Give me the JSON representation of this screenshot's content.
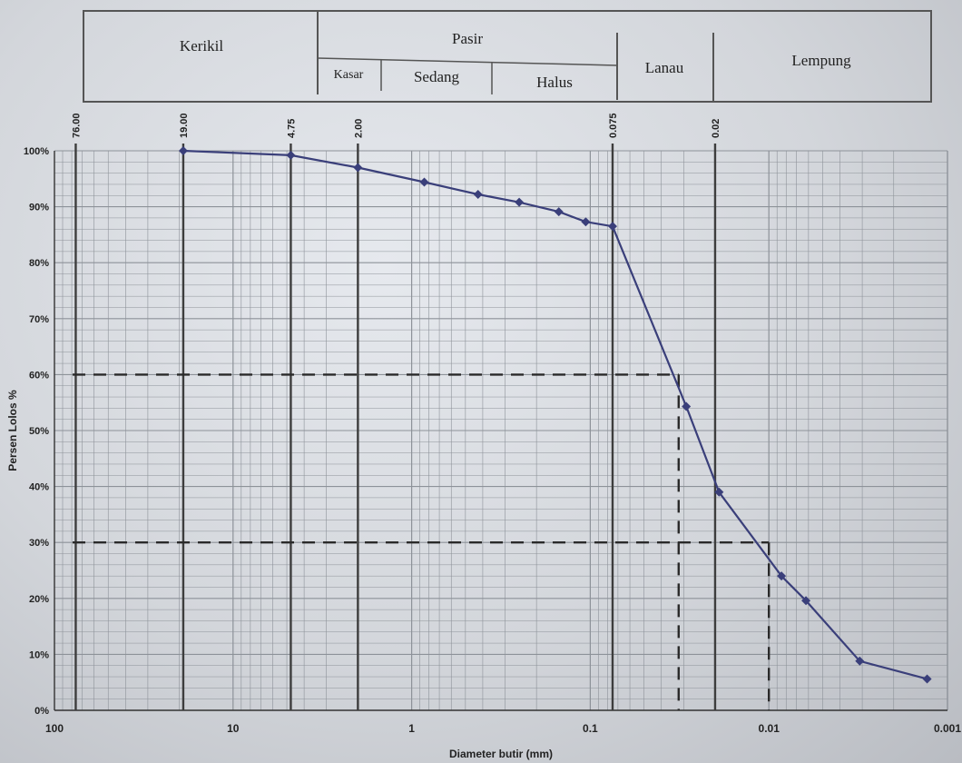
{
  "soil_classes": {
    "kerikil": "Kerikil",
    "pasir": "Pasir",
    "kasar": "Kasar",
    "sedang": "Sedang",
    "halus": "Halus",
    "lanau": "Lanau",
    "lempung": "Lempung"
  },
  "chart_data": {
    "type": "line",
    "x_scale": "log",
    "x_reversed": true,
    "xlabel": "Diameter butir (mm)",
    "ylabel": "Persen Lolos %",
    "xlim": [
      100,
      0.001
    ],
    "ylim": [
      0,
      100
    ],
    "x_ticks": [
      {
        "value": 100,
        "label": "100"
      },
      {
        "value": 10,
        "label": "10"
      },
      {
        "value": 1,
        "label": "1"
      },
      {
        "value": 0.1,
        "label": "0.1"
      },
      {
        "value": 0.01,
        "label": "0.01"
      },
      {
        "value": 0.001,
        "label": "0.001"
      }
    ],
    "y_ticks": [
      {
        "value": 0,
        "label": "0%"
      },
      {
        "value": 10,
        "label": "10%"
      },
      {
        "value": 20,
        "label": "20%"
      },
      {
        "value": 30,
        "label": "30%"
      },
      {
        "value": 40,
        "label": "40%"
      },
      {
        "value": 50,
        "label": "50%"
      },
      {
        "value": 60,
        "label": "60%"
      },
      {
        "value": 70,
        "label": "70%"
      },
      {
        "value": 80,
        "label": "80%"
      },
      {
        "value": 90,
        "label": "90%"
      },
      {
        "value": 100,
        "label": "100%"
      }
    ],
    "sieve_labels": [
      {
        "value": 76.0,
        "label": "76.00"
      },
      {
        "value": 19.0,
        "label": "19.00"
      },
      {
        "value": 4.75,
        "label": "4.75"
      },
      {
        "value": 2.0,
        "label": "2.00"
      },
      {
        "value": 0.075,
        "label": "0.075"
      },
      {
        "value": 0.02,
        "label": "0.02"
      }
    ],
    "series": [
      {
        "x": [
          19.0,
          4.75,
          2.0,
          0.85,
          0.425,
          0.25,
          0.15,
          0.106,
          0.075,
          0.029,
          0.019,
          0.0085,
          0.0062,
          0.0031,
          0.0013
        ],
        "values": [
          100,
          99.2,
          97,
          94.4,
          92.2,
          90.8,
          89.1,
          87.3,
          86.5,
          54.3,
          39,
          24,
          19.6,
          8.8,
          5.6
        ]
      }
    ],
    "reference_lines": [
      {
        "percent": 60,
        "diameter": 0.032
      },
      {
        "percent": 30,
        "diameter": 0.01
      }
    ],
    "colors": {
      "line": "#3a3f7a",
      "grid": "#8d9299",
      "major_grid": "#3d3d3d",
      "dashed": "#2a2a2a"
    }
  }
}
